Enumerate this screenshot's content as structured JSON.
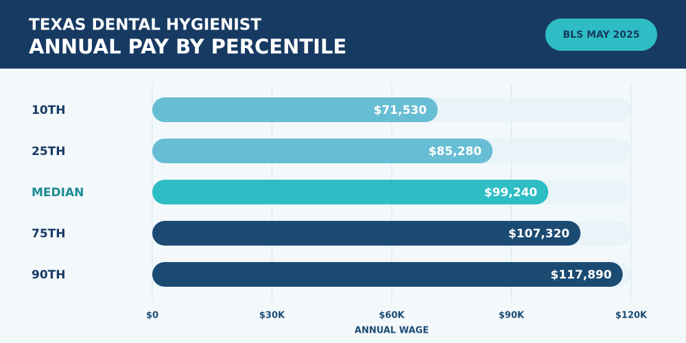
{
  "chart_data": {
    "type": "bar",
    "orientation": "horizontal",
    "title": "TEXAS DENTAL HYGIENIST",
    "subtitle": "ANNUAL PAY BY PERCENTILE",
    "badge": "BLS MAY 2025",
    "categories": [
      "10TH",
      "25TH",
      "MEDIAN",
      "75TH",
      "90TH"
    ],
    "values": [
      71530,
      85280,
      99240,
      107320,
      117890
    ],
    "value_labels": [
      "$71,530",
      "$85,280",
      "$99,240",
      "$107,320",
      "$117,890"
    ],
    "colors": [
      "#67bdd3",
      "#67bdd3",
      "#2ebdc4",
      "#1b4b73",
      "#1b4b73"
    ],
    "label_colors": [
      "#173a63",
      "#173a63",
      "#1d8a93",
      "#173a63",
      "#173a63"
    ],
    "xlim": [
      0,
      120000
    ],
    "xticks": [
      {
        "value": 0,
        "label": "$0"
      },
      {
        "value": 30000,
        "label": "$30K"
      },
      {
        "value": 60000,
        "label": "$60K"
      },
      {
        "value": 90000,
        "label": "$90K"
      },
      {
        "value": 120000,
        "label": "$120K"
      }
    ],
    "xlabel": "ANNUAL WAGE",
    "grid": true
  }
}
